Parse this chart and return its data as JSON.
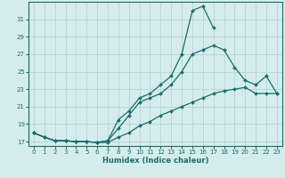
{
  "xlabel": "Humidex (Indice chaleur)",
  "background_color": "#d5eced",
  "grid_color": "#afd0d2",
  "line_color": "#1a6e6a",
  "xlim": [
    -0.5,
    23.5
  ],
  "ylim": [
    16.5,
    33.0
  ],
  "yticks": [
    17,
    19,
    21,
    23,
    25,
    27,
    29,
    31
  ],
  "xticks": [
    0,
    1,
    2,
    3,
    4,
    5,
    6,
    7,
    8,
    9,
    10,
    11,
    12,
    13,
    14,
    15,
    16,
    17,
    18,
    19,
    20,
    21,
    22,
    23
  ],
  "line_top_x": [
    0,
    1,
    2,
    3,
    4,
    5,
    6,
    7,
    8,
    9,
    10,
    11,
    12,
    13,
    14,
    15,
    16,
    17
  ],
  "line_top_y": [
    18.0,
    17.5,
    17.1,
    17.1,
    17.0,
    17.0,
    16.9,
    17.1,
    19.5,
    20.5,
    22.0,
    22.5,
    23.5,
    24.5,
    27.0,
    32.0,
    32.5,
    30.0
  ],
  "line_mid_x": [
    0,
    1,
    2,
    3,
    4,
    5,
    6,
    7,
    8,
    9,
    10,
    11,
    12,
    13,
    14,
    15,
    16,
    17,
    18,
    19,
    20,
    21,
    22,
    23
  ],
  "line_mid_y": [
    18.0,
    17.5,
    17.1,
    17.1,
    17.0,
    17.0,
    16.9,
    17.1,
    18.5,
    20.0,
    21.5,
    22.0,
    22.5,
    23.5,
    25.0,
    27.0,
    27.5,
    28.0,
    27.5,
    25.5,
    24.0,
    23.5,
    24.5,
    22.5
  ],
  "line_bot_x": [
    0,
    1,
    2,
    3,
    4,
    5,
    6,
    7,
    8,
    9,
    10,
    11,
    12,
    13,
    14,
    15,
    16,
    17,
    18,
    19,
    20,
    21,
    22,
    23
  ],
  "line_bot_y": [
    18.0,
    17.5,
    17.1,
    17.1,
    17.0,
    17.0,
    16.9,
    16.9,
    17.5,
    18.0,
    18.8,
    19.3,
    20.0,
    20.5,
    21.0,
    21.5,
    22.0,
    22.5,
    22.8,
    23.0,
    23.2,
    22.5,
    22.5,
    22.5
  ]
}
